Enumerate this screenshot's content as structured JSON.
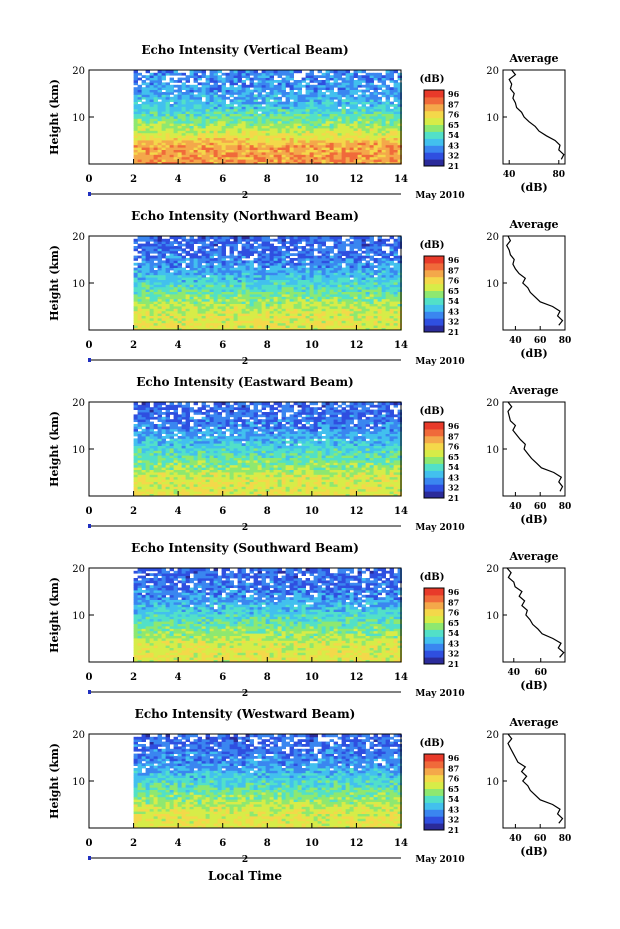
{
  "figure": {
    "xlabel": "Local Time",
    "date_label": "May 2010",
    "x_ticks": [
      "0",
      "2",
      "4",
      "6",
      "8",
      "10",
      "12",
      "14"
    ],
    "day_marker": "2",
    "colorbar_unit": "(dB)",
    "colorbar_ticks": [
      "96",
      "87",
      "76",
      "65",
      "54",
      "43",
      "32",
      "21"
    ],
    "avg_title": "Average",
    "avg_xlabel": "(dB)",
    "ylabel": "Height (km)"
  },
  "colors": {
    "scale": [
      "#2b2b9a",
      "#2f4fe0",
      "#3a86f0",
      "#42c0ee",
      "#52e0c8",
      "#8ee870",
      "#d7ec48",
      "#f4d84a",
      "#f4a84a",
      "#f06a3a",
      "#e83a2a"
    ]
  },
  "chart_data": [
    {
      "type": "heatmap",
      "title": "Echo Intensity (Vertical Beam)",
      "xlim": [
        0,
        14
      ],
      "ylim": [
        0,
        20
      ],
      "y_ticks": [
        "10",
        "20"
      ],
      "data_start_hour": 2,
      "value_profile": [
        {
          "h": 1,
          "v": 80
        },
        {
          "h": 4,
          "v": 79
        },
        {
          "h": 7,
          "v": 65
        },
        {
          "h": 10,
          "v": 55
        },
        {
          "h": 13,
          "v": 45
        },
        {
          "h": 16,
          "v": 40
        },
        {
          "h": 19,
          "v": 38
        }
      ],
      "zlim": [
        21,
        96
      ],
      "average": {
        "x_ticks": [
          "40",
          "80"
        ],
        "xlim": [
          35,
          85
        ],
        "profile": [
          {
            "h": 1,
            "v": 82
          },
          {
            "h": 2,
            "v": 84
          },
          {
            "h": 3,
            "v": 80
          },
          {
            "h": 4,
            "v": 81
          },
          {
            "h": 5,
            "v": 77
          },
          {
            "h": 6,
            "v": 70
          },
          {
            "h": 7,
            "v": 64
          },
          {
            "h": 8,
            "v": 61
          },
          {
            "h": 9,
            "v": 56
          },
          {
            "h": 10,
            "v": 52
          },
          {
            "h": 11,
            "v": 50
          },
          {
            "h": 12,
            "v": 46
          },
          {
            "h": 13,
            "v": 45
          },
          {
            "h": 14,
            "v": 43
          },
          {
            "h": 15,
            "v": 44
          },
          {
            "h": 16,
            "v": 41
          },
          {
            "h": 17,
            "v": 42
          },
          {
            "h": 18,
            "v": 40
          },
          {
            "h": 19,
            "v": 45
          },
          {
            "h": 20,
            "v": 42
          }
        ]
      }
    },
    {
      "type": "heatmap",
      "title": "Echo Intensity (Northward Beam)",
      "xlim": [
        0,
        14
      ],
      "ylim": [
        0,
        20
      ],
      "y_ticks": [
        "10",
        "20"
      ],
      "data_start_hour": 2,
      "value_profile": [
        {
          "h": 1,
          "v": 68
        },
        {
          "h": 4,
          "v": 66
        },
        {
          "h": 7,
          "v": 58
        },
        {
          "h": 10,
          "v": 50
        },
        {
          "h": 13,
          "v": 42
        },
        {
          "h": 16,
          "v": 36
        },
        {
          "h": 19,
          "v": 34
        }
      ],
      "zlim": [
        21,
        96
      ],
      "average": {
        "x_ticks": [
          "40",
          "60",
          "80"
        ],
        "xlim": [
          30,
          80
        ],
        "profile": [
          {
            "h": 1,
            "v": 75
          },
          {
            "h": 2,
            "v": 78
          },
          {
            "h": 3,
            "v": 74
          },
          {
            "h": 4,
            "v": 76
          },
          {
            "h": 5,
            "v": 70
          },
          {
            "h": 6,
            "v": 60
          },
          {
            "h": 7,
            "v": 56
          },
          {
            "h": 8,
            "v": 52
          },
          {
            "h": 9,
            "v": 50
          },
          {
            "h": 10,
            "v": 46
          },
          {
            "h": 11,
            "v": 48
          },
          {
            "h": 12,
            "v": 43
          },
          {
            "h": 13,
            "v": 40
          },
          {
            "h": 14,
            "v": 38
          },
          {
            "h": 15,
            "v": 39
          },
          {
            "h": 16,
            "v": 36
          },
          {
            "h": 17,
            "v": 35
          },
          {
            "h": 18,
            "v": 33
          },
          {
            "h": 19,
            "v": 36
          },
          {
            "h": 20,
            "v": 34
          }
        ]
      }
    },
    {
      "type": "heatmap",
      "title": "Echo Intensity (Eastward Beam)",
      "xlim": [
        0,
        14
      ],
      "ylim": [
        0,
        20
      ],
      "y_ticks": [
        "10",
        "20"
      ],
      "data_start_hour": 2,
      "value_profile": [
        {
          "h": 1,
          "v": 68
        },
        {
          "h": 4,
          "v": 66
        },
        {
          "h": 7,
          "v": 58
        },
        {
          "h": 10,
          "v": 50
        },
        {
          "h": 13,
          "v": 42
        },
        {
          "h": 16,
          "v": 36
        },
        {
          "h": 19,
          "v": 34
        }
      ],
      "zlim": [
        21,
        96
      ],
      "average": {
        "x_ticks": [
          "40",
          "60",
          "80"
        ],
        "xlim": [
          30,
          80
        ],
        "profile": [
          {
            "h": 1,
            "v": 76
          },
          {
            "h": 2,
            "v": 78
          },
          {
            "h": 3,
            "v": 75
          },
          {
            "h": 4,
            "v": 77
          },
          {
            "h": 5,
            "v": 71
          },
          {
            "h": 6,
            "v": 61
          },
          {
            "h": 7,
            "v": 57
          },
          {
            "h": 8,
            "v": 53
          },
          {
            "h": 9,
            "v": 50
          },
          {
            "h": 10,
            "v": 47
          },
          {
            "h": 11,
            "v": 48
          },
          {
            "h": 12,
            "v": 44
          },
          {
            "h": 13,
            "v": 41
          },
          {
            "h": 14,
            "v": 38
          },
          {
            "h": 15,
            "v": 40
          },
          {
            "h": 16,
            "v": 36
          },
          {
            "h": 17,
            "v": 35
          },
          {
            "h": 18,
            "v": 34
          },
          {
            "h": 19,
            "v": 37
          },
          {
            "h": 20,
            "v": 34
          }
        ]
      }
    },
    {
      "type": "heatmap",
      "title": "Echo Intensity (Southward Beam)",
      "xlim": [
        0,
        14
      ],
      "ylim": [
        0,
        20
      ],
      "y_ticks": [
        "10",
        "20"
      ],
      "data_start_hour": 2,
      "value_profile": [
        {
          "h": 1,
          "v": 68
        },
        {
          "h": 4,
          "v": 66
        },
        {
          "h": 7,
          "v": 58
        },
        {
          "h": 10,
          "v": 50
        },
        {
          "h": 13,
          "v": 42
        },
        {
          "h": 16,
          "v": 36
        },
        {
          "h": 19,
          "v": 34
        }
      ],
      "zlim": [
        21,
        96
      ],
      "average": {
        "x_ticks": [
          "40",
          "60"
        ],
        "xlim": [
          32,
          78
        ],
        "profile": [
          {
            "h": 1,
            "v": 74
          },
          {
            "h": 2,
            "v": 77
          },
          {
            "h": 3,
            "v": 73
          },
          {
            "h": 4,
            "v": 75
          },
          {
            "h": 5,
            "v": 69
          },
          {
            "h": 6,
            "v": 61
          },
          {
            "h": 7,
            "v": 58
          },
          {
            "h": 8,
            "v": 54
          },
          {
            "h": 9,
            "v": 52
          },
          {
            "h": 10,
            "v": 49
          },
          {
            "h": 11,
            "v": 50
          },
          {
            "h": 12,
            "v": 46
          },
          {
            "h": 13,
            "v": 48
          },
          {
            "h": 14,
            "v": 44
          },
          {
            "h": 15,
            "v": 46
          },
          {
            "h": 16,
            "v": 41
          },
          {
            "h": 17,
            "v": 40
          },
          {
            "h": 18,
            "v": 36
          },
          {
            "h": 19,
            "v": 38
          },
          {
            "h": 20,
            "v": 35
          }
        ]
      }
    },
    {
      "type": "heatmap",
      "title": "Echo Intensity (Westward Beam)",
      "xlim": [
        0,
        14
      ],
      "ylim": [
        0,
        20
      ],
      "y_ticks": [
        "10",
        "20"
      ],
      "data_start_hour": 2,
      "value_profile": [
        {
          "h": 1,
          "v": 68
        },
        {
          "h": 4,
          "v": 66
        },
        {
          "h": 7,
          "v": 58
        },
        {
          "h": 10,
          "v": 50
        },
        {
          "h": 13,
          "v": 42
        },
        {
          "h": 16,
          "v": 36
        },
        {
          "h": 19,
          "v": 34
        }
      ],
      "zlim": [
        21,
        96
      ],
      "average": {
        "x_ticks": [
          "40",
          "60",
          "80"
        ],
        "xlim": [
          30,
          80
        ],
        "profile": [
          {
            "h": 1,
            "v": 75
          },
          {
            "h": 2,
            "v": 78
          },
          {
            "h": 3,
            "v": 74
          },
          {
            "h": 4,
            "v": 76
          },
          {
            "h": 5,
            "v": 70
          },
          {
            "h": 6,
            "v": 60
          },
          {
            "h": 7,
            "v": 56
          },
          {
            "h": 8,
            "v": 52
          },
          {
            "h": 9,
            "v": 50
          },
          {
            "h": 10,
            "v": 46
          },
          {
            "h": 11,
            "v": 49
          },
          {
            "h": 12,
            "v": 45
          },
          {
            "h": 13,
            "v": 48
          },
          {
            "h": 14,
            "v": 42
          },
          {
            "h": 15,
            "v": 40
          },
          {
            "h": 16,
            "v": 38
          },
          {
            "h": 17,
            "v": 36
          },
          {
            "h": 18,
            "v": 34
          },
          {
            "h": 19,
            "v": 37
          },
          {
            "h": 20,
            "v": 34
          }
        ]
      }
    }
  ]
}
